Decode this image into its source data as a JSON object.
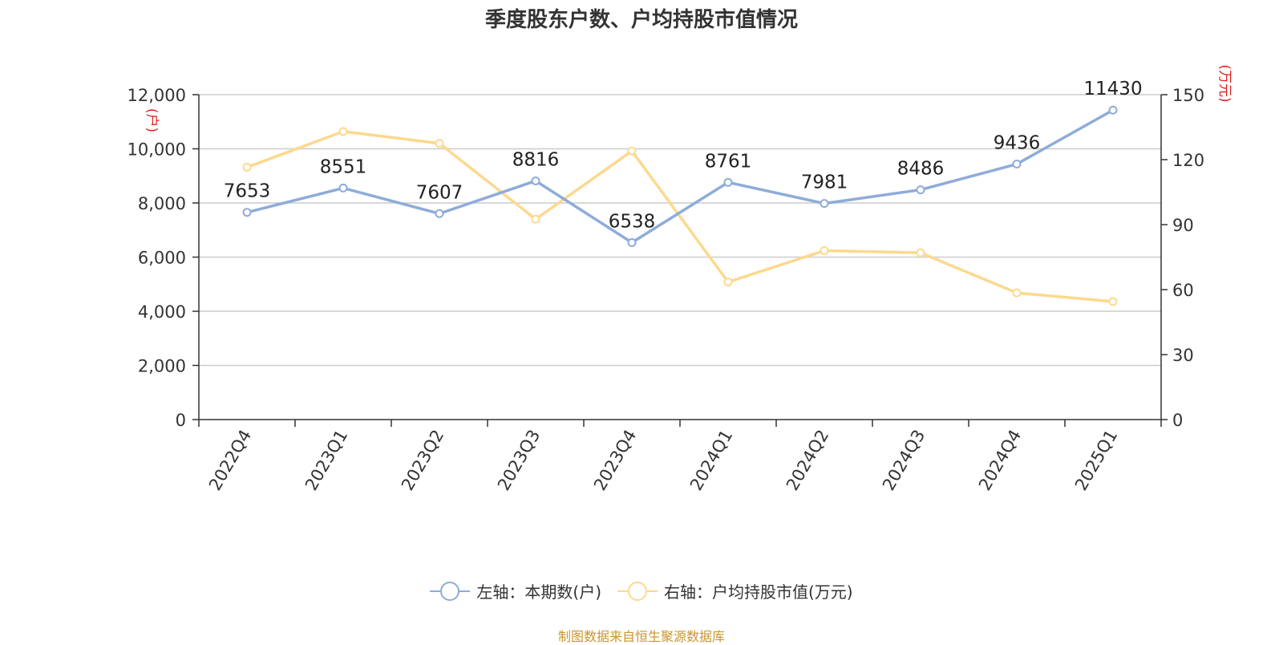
{
  "title": "季度股东户数、户均持股市值情况",
  "source": "制图数据来自恒生聚源数据库",
  "colors": {
    "left_series": "#8eacd8",
    "right_series": "#fdd98e",
    "unit_label": "#e02020",
    "title": "#333333",
    "source": "#c8962e"
  },
  "chart_data": {
    "type": "line",
    "title": "季度股东户数、户均持股市值情况",
    "categories": [
      "2022Q4",
      "2023Q1",
      "2023Q2",
      "2023Q3",
      "2023Q4",
      "2024Q1",
      "2024Q2",
      "2024Q3",
      "2024Q4",
      "2025Q1"
    ],
    "left_axis": {
      "unit": "(户)",
      "range": [
        0,
        12000
      ],
      "ticks": [
        "0",
        "2,000",
        "4,000",
        "6,000",
        "8,000",
        "10,000",
        "12,000"
      ]
    },
    "right_axis": {
      "unit": "(万元)",
      "range": [
        0,
        150
      ],
      "ticks": [
        "0",
        "30",
        "60",
        "90",
        "120",
        "150"
      ]
    },
    "grid": true,
    "legend_position": "bottom",
    "series": [
      {
        "name": "左轴：本期数(户)",
        "axis": "left",
        "values": [
          7653,
          8551,
          7607,
          8816,
          6538,
          8761,
          7981,
          8486,
          9436,
          11430
        ],
        "data_labels": [
          "7653",
          "8551",
          "7607",
          "8816",
          "6538",
          "8761",
          "7981",
          "8486",
          "9436",
          "11430"
        ]
      },
      {
        "name": "右轴：户均持股市值(万元)",
        "axis": "right",
        "values": [
          116.5,
          133,
          127.5,
          92.5,
          124,
          63.5,
          78,
          77,
          58.5,
          54.5
        ]
      }
    ]
  }
}
